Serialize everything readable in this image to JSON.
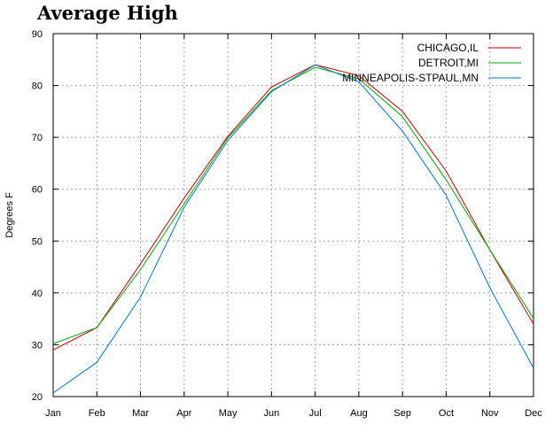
{
  "chart_data": {
    "type": "line",
    "title": "Average High",
    "xlabel": "",
    "ylabel": "Degrees F",
    "ylim": [
      20,
      90
    ],
    "yticks": [
      20,
      30,
      40,
      50,
      60,
      70,
      80,
      90
    ],
    "grid": true,
    "legend_position": "top-right",
    "categories": [
      "Jan",
      "Feb",
      "Mar",
      "Apr",
      "May",
      "Jun",
      "Jul",
      "Aug",
      "Sep",
      "Oct",
      "Nov",
      "Dec"
    ],
    "series": [
      {
        "name": "CHICAGO,IL",
        "color": "#cc0000",
        "values": [
          29,
          33.3,
          45.6,
          58.3,
          70.2,
          79.7,
          84.0,
          81.9,
          75.0,
          63.5,
          48.3,
          34.0
        ]
      },
      {
        "name": "DETROIT,MI",
        "color": "#00aa00",
        "values": [
          30.2,
          33.3,
          44.5,
          57.2,
          69.9,
          79.0,
          83.5,
          81.3,
          74.0,
          61.8,
          48.3,
          35.1
        ]
      },
      {
        "name": "MINNEAPOLIS-STPAUL,MN",
        "color": "#0077cc",
        "values": [
          20.7,
          26.6,
          39.2,
          56.5,
          69.4,
          78.8,
          84.0,
          80.7,
          71.2,
          58.8,
          41.0,
          25.5
        ]
      }
    ]
  }
}
